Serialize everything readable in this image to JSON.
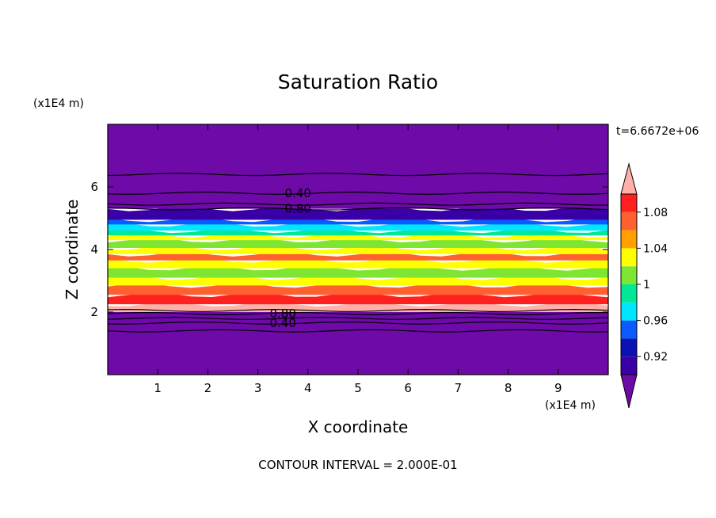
{
  "chart_data": {
    "type": "heatmap",
    "title": "Saturation Ratio",
    "xlabel": "X coordinate",
    "ylabel": "Z coordinate",
    "x_unit": "(x1E4 m)",
    "y_unit": "(x1E4 m)",
    "xlim": [
      0,
      10
    ],
    "ylim": [
      0,
      8
    ],
    "x_ticks": [
      "1",
      "2",
      "3",
      "4",
      "5",
      "6",
      "7",
      "8",
      "9"
    ],
    "y_ticks": [
      "2",
      "4",
      "6"
    ],
    "time_label": "t=6.6672e+06",
    "contour_note": "CONTOUR INTERVAL = 2.000E-01",
    "contour_labels": [
      {
        "text": "0.40",
        "x": 3.8,
        "y": 5.8
      },
      {
        "text": "0.80",
        "x": 3.8,
        "y": 5.3
      },
      {
        "text": "0.80",
        "x": 3.5,
        "y": 1.95
      },
      {
        "text": "0.40",
        "x": 3.5,
        "y": 1.65
      }
    ],
    "colorbar": {
      "levels": [
        0.9,
        0.92,
        0.94,
        0.96,
        0.98,
        1.0,
        1.02,
        1.04,
        1.06,
        1.08,
        1.1
      ],
      "tick_labels": [
        "0.92",
        "0.96",
        "1",
        "1.04",
        "1.08"
      ],
      "tick_values": [
        0.92,
        0.96,
        1.0,
        1.04,
        1.08
      ],
      "colors": [
        "#6e0aa8",
        "#3a00a8",
        "#0a12b4",
        "#0a5aff",
        "#00e6ff",
        "#00e896",
        "#7ee632",
        "#ffff00",
        "#ffa000",
        "#ff6030",
        "#ff2020",
        "#ffb0a8"
      ]
    },
    "bands": [
      {
        "z0": 0.0,
        "z1": 2.0,
        "color": "#6e0aa8"
      },
      {
        "z0": 2.0,
        "z1": 2.25,
        "color": "#ffb0a8"
      },
      {
        "z0": 2.25,
        "z1": 2.55,
        "color": "#ff2020"
      },
      {
        "z0": 2.55,
        "z1": 2.85,
        "color": "#ff6030"
      },
      {
        "z0": 2.85,
        "z1": 3.1,
        "color": "#ffff00"
      },
      {
        "z0": 3.1,
        "z1": 3.4,
        "color": "#7ee632"
      },
      {
        "z0": 3.4,
        "z1": 3.65,
        "color": "#ffff00"
      },
      {
        "z0": 3.65,
        "z1": 3.85,
        "color": "#ff6030"
      },
      {
        "z0": 3.85,
        "z1": 4.05,
        "color": "#ffff00"
      },
      {
        "z0": 4.05,
        "z1": 4.3,
        "color": "#7ee632"
      },
      {
        "z0": 4.3,
        "z1": 4.45,
        "color": "#ffff00"
      },
      {
        "z0": 4.45,
        "z1": 4.6,
        "color": "#00e896"
      },
      {
        "z0": 4.6,
        "z1": 4.8,
        "color": "#00e6ff"
      },
      {
        "z0": 4.8,
        "z1": 4.95,
        "color": "#0a5aff"
      },
      {
        "z0": 4.95,
        "z1": 5.3,
        "color": "#3a00a8"
      },
      {
        "z0": 5.3,
        "z1": 8.0,
        "color": "#6e0aa8"
      }
    ],
    "contour_lines_z": [
      1.4,
      1.65,
      1.8,
      1.95,
      2.05,
      5.3,
      5.45,
      5.8,
      6.4
    ]
  }
}
